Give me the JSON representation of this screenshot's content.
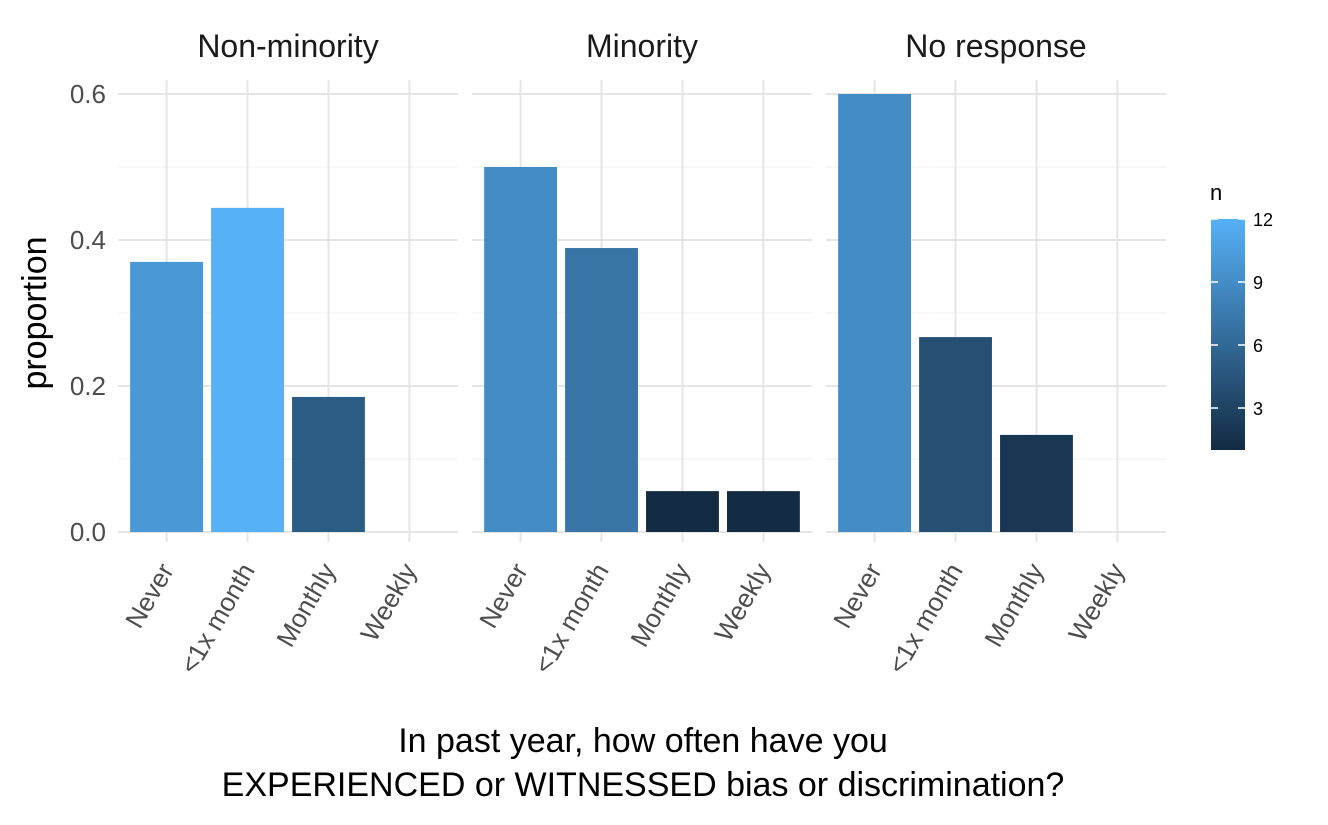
{
  "chart_data": {
    "type": "bar",
    "facets": [
      "Non-minority",
      "Minority",
      "No response"
    ],
    "categories": [
      "Never",
      "<1x month",
      "Monthly",
      "Weekly"
    ],
    "series": [
      {
        "facet": "Non-minority",
        "values": [
          0.37,
          0.444,
          0.185,
          0.0
        ],
        "n": [
          10,
          12,
          5,
          0
        ]
      },
      {
        "facet": "Minority",
        "values": [
          0.5,
          0.389,
          0.056,
          0.056
        ],
        "n": [
          9,
          7,
          1,
          1
        ]
      },
      {
        "facet": "No response",
        "values": [
          0.6,
          0.267,
          0.133,
          0.0
        ],
        "n": [
          9,
          4,
          2,
          0
        ]
      }
    ],
    "ylabel": "proportion",
    "xlabel_lines": [
      "In past year, how often have you",
      "EXPERIENCED or WITNESSED bias or discrimination?"
    ],
    "ylim": [
      0,
      0.6
    ],
    "yticks": [
      0.0,
      0.2,
      0.4,
      0.6
    ],
    "ytick_labels": [
      "0.0",
      "0.2",
      "0.4",
      "0.6"
    ],
    "grid": true,
    "legend": {
      "title": "n",
      "placement": "right",
      "range": [
        1,
        12
      ],
      "ticks": [
        3,
        6,
        9,
        12
      ],
      "color_low": "#132B43",
      "color_high": "#56B1F7"
    }
  }
}
